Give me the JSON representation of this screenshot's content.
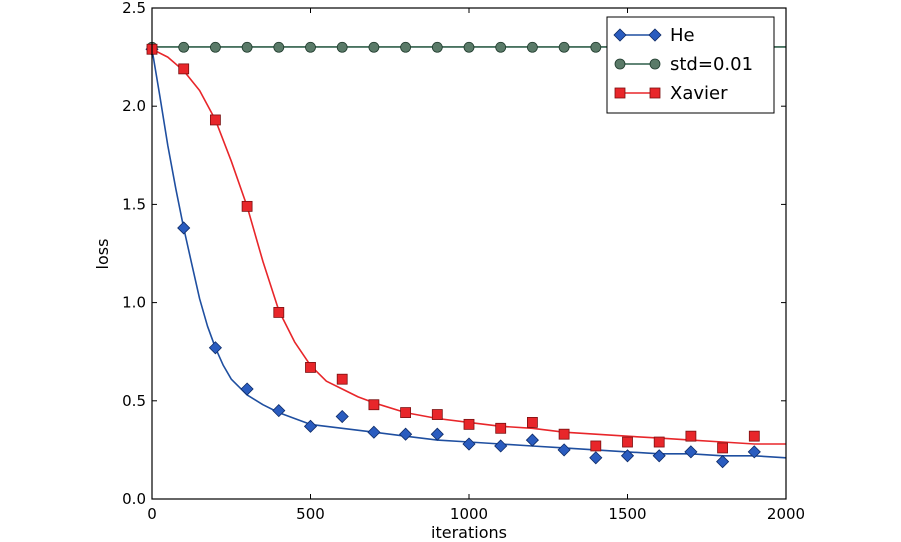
{
  "chart_data": {
    "type": "line",
    "xlabel": "iterations",
    "ylabel": "loss",
    "xlim": [
      0,
      2000
    ],
    "ylim": [
      0.0,
      2.5
    ],
    "xticks": [
      0,
      500,
      1000,
      1500,
      2000
    ],
    "xtick_labels": [
      "0",
      "500",
      "1000",
      "1500",
      "2000"
    ],
    "yticks": [
      0.0,
      0.5,
      1.0,
      1.5,
      2.0,
      2.5
    ],
    "ytick_labels": [
      "0.0",
      "0.5",
      "1.0",
      "1.5",
      "2.0",
      "2.5"
    ],
    "grid": false,
    "legend_position": "top-right",
    "series": [
      {
        "name": "He",
        "color": "#1f4fa0",
        "marker": "diamond",
        "marker_x": [
          0,
          100,
          200,
          300,
          400,
          500,
          600,
          700,
          800,
          900,
          1000,
          1100,
          1200,
          1300,
          1400,
          1500,
          1600,
          1700,
          1800,
          1900
        ],
        "marker_y": [
          2.29,
          1.38,
          0.77,
          0.56,
          0.45,
          0.37,
          0.42,
          0.34,
          0.33,
          0.33,
          0.28,
          0.27,
          0.3,
          0.25,
          0.21,
          0.22,
          0.22,
          0.24,
          0.19,
          0.24
        ],
        "curve": [
          [
            0,
            2.29
          ],
          [
            25,
            2.05
          ],
          [
            50,
            1.8
          ],
          [
            75,
            1.58
          ],
          [
            100,
            1.38
          ],
          [
            125,
            1.2
          ],
          [
            150,
            1.02
          ],
          [
            175,
            0.88
          ],
          [
            200,
            0.77
          ],
          [
            225,
            0.68
          ],
          [
            250,
            0.61
          ],
          [
            275,
            0.57
          ],
          [
            300,
            0.53
          ],
          [
            350,
            0.48
          ],
          [
            400,
            0.44
          ],
          [
            450,
            0.41
          ],
          [
            500,
            0.38
          ],
          [
            600,
            0.36
          ],
          [
            700,
            0.34
          ],
          [
            800,
            0.32
          ],
          [
            900,
            0.3
          ],
          [
            1000,
            0.29
          ],
          [
            1100,
            0.28
          ],
          [
            1200,
            0.27
          ],
          [
            1300,
            0.26
          ],
          [
            1400,
            0.25
          ],
          [
            1500,
            0.24
          ],
          [
            1600,
            0.23
          ],
          [
            1700,
            0.23
          ],
          [
            1800,
            0.22
          ],
          [
            1900,
            0.22
          ],
          [
            2000,
            0.21
          ]
        ]
      },
      {
        "name": "std=0.01",
        "color": "#2f5f4a",
        "marker": "circle",
        "marker_x": [
          0,
          100,
          200,
          300,
          400,
          500,
          600,
          700,
          800,
          900,
          1000,
          1100,
          1200,
          1300,
          1400,
          1500,
          1600,
          1700,
          1800,
          1900
        ],
        "marker_y": [
          2.3,
          2.3,
          2.3,
          2.3,
          2.3,
          2.3,
          2.3,
          2.3,
          2.3,
          2.3,
          2.3,
          2.3,
          2.3,
          2.3,
          2.3,
          2.3,
          2.3,
          2.3,
          2.3,
          2.3
        ],
        "curve": [
          [
            0,
            2.302
          ],
          [
            2000,
            2.302
          ]
        ]
      },
      {
        "name": "Xavier",
        "color": "#e8262a",
        "marker": "square",
        "marker_x": [
          0,
          100,
          200,
          300,
          400,
          500,
          600,
          700,
          800,
          900,
          1000,
          1100,
          1200,
          1300,
          1400,
          1500,
          1600,
          1700,
          1800,
          1900
        ],
        "marker_y": [
          2.29,
          2.19,
          1.93,
          1.49,
          0.95,
          0.67,
          0.61,
          0.48,
          0.44,
          0.43,
          0.38,
          0.36,
          0.39,
          0.33,
          0.27,
          0.29,
          0.29,
          0.32,
          0.26,
          0.32
        ],
        "curve": [
          [
            0,
            2.29
          ],
          [
            50,
            2.25
          ],
          [
            100,
            2.18
          ],
          [
            150,
            2.08
          ],
          [
            200,
            1.93
          ],
          [
            250,
            1.72
          ],
          [
            300,
            1.49
          ],
          [
            350,
            1.21
          ],
          [
            400,
            0.96
          ],
          [
            450,
            0.8
          ],
          [
            500,
            0.68
          ],
          [
            550,
            0.6
          ],
          [
            600,
            0.56
          ],
          [
            650,
            0.52
          ],
          [
            700,
            0.49
          ],
          [
            800,
            0.44
          ],
          [
            900,
            0.41
          ],
          [
            1000,
            0.39
          ],
          [
            1100,
            0.37
          ],
          [
            1200,
            0.36
          ],
          [
            1300,
            0.34
          ],
          [
            1400,
            0.33
          ],
          [
            1500,
            0.32
          ],
          [
            1600,
            0.31
          ],
          [
            1700,
            0.3
          ],
          [
            1800,
            0.29
          ],
          [
            1900,
            0.28
          ],
          [
            2000,
            0.28
          ]
        ]
      }
    ]
  }
}
